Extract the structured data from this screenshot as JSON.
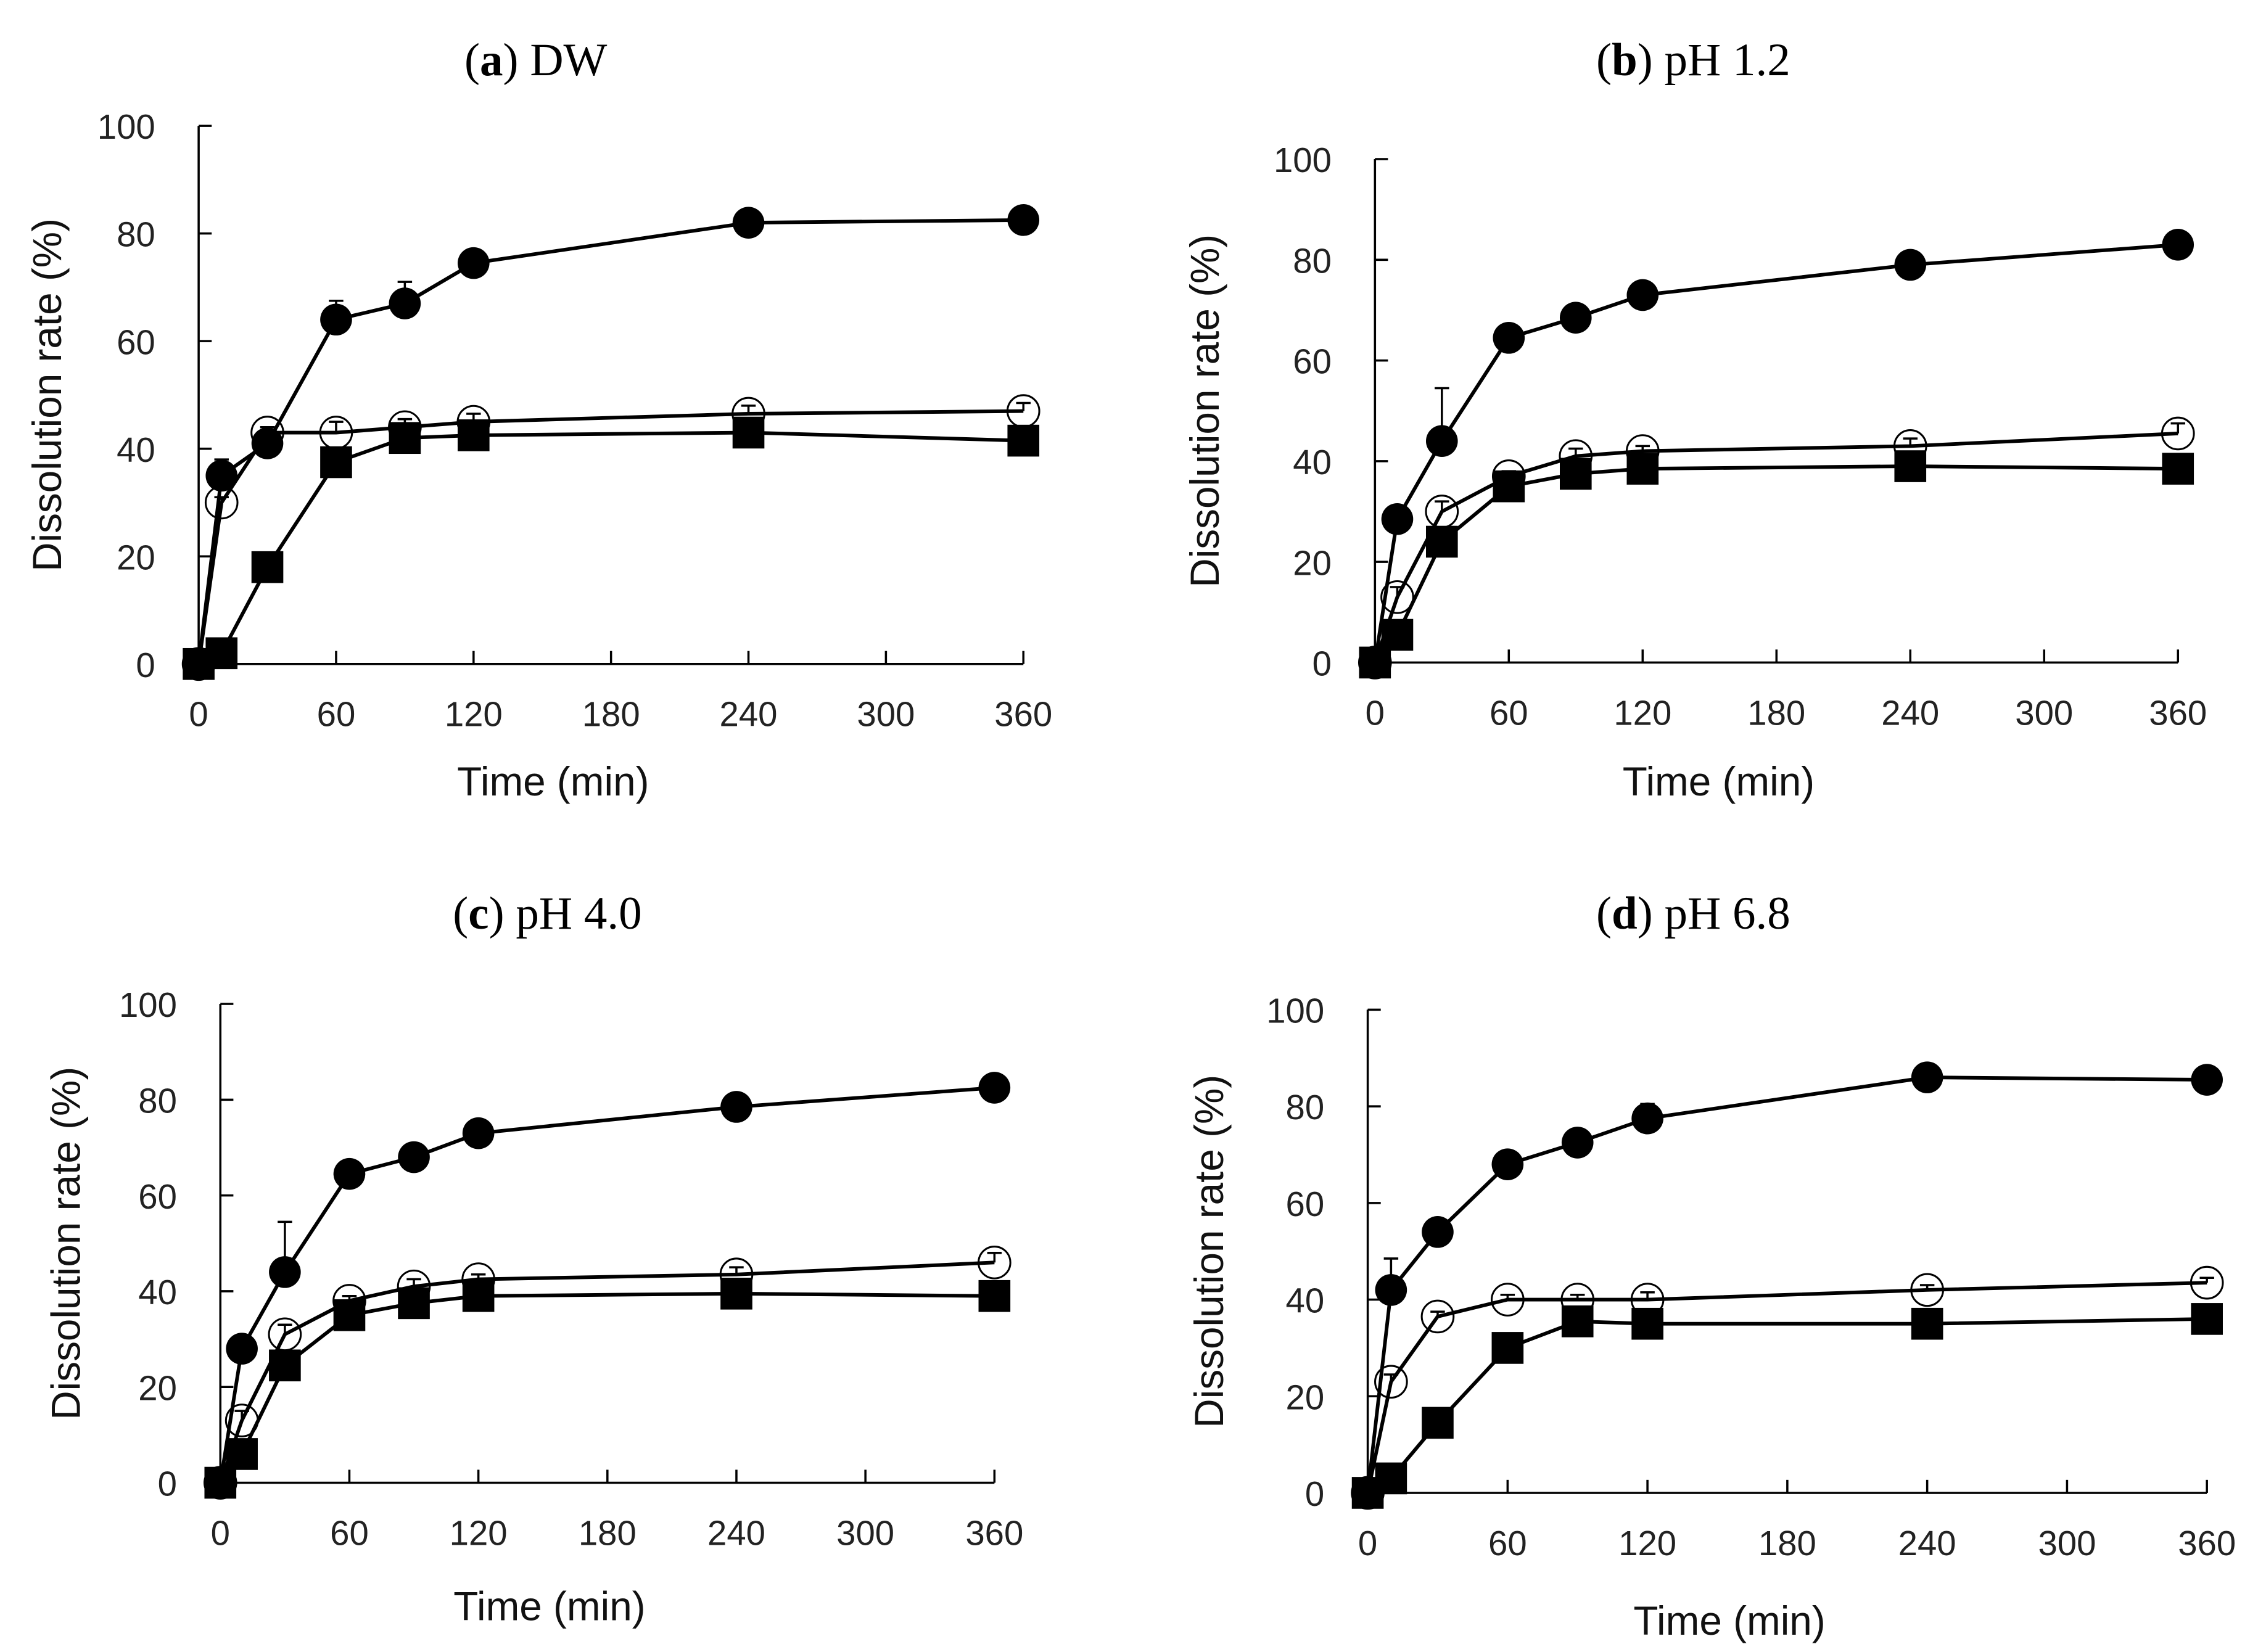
{
  "chart_data": [
    {
      "type": "line",
      "panel": "a",
      "title_letter": "a",
      "title": "DW",
      "xlabel": "Time (min)",
      "ylabel": "Dissolution rate (%)",
      "xlim": [
        0,
        360
      ],
      "ylim": [
        0,
        100
      ],
      "xticks": [
        0,
        60,
        120,
        180,
        240,
        300,
        360
      ],
      "yticks": [
        0,
        20,
        40,
        60,
        80,
        100
      ],
      "x": [
        0,
        10,
        30,
        60,
        90,
        120,
        240,
        360
      ],
      "series": [
        {
          "name": "filled-circle",
          "marker": "filled-circle",
          "values": [
            0,
            35,
            41,
            64,
            67,
            74.5,
            82,
            82.5
          ],
          "err": [
            0,
            3,
            1,
            3.5,
            4,
            1,
            1,
            1
          ]
        },
        {
          "name": "open-circle",
          "marker": "open-circle",
          "values": [
            0,
            30,
            43,
            43,
            44,
            45,
            46.5,
            47
          ],
          "err": [
            0,
            1,
            1,
            2,
            1.5,
            1.5,
            1.5,
            1.5
          ]
        },
        {
          "name": "filled-square",
          "marker": "filled-square",
          "values": [
            0,
            2,
            18,
            37.5,
            42,
            42.5,
            43,
            41.5
          ],
          "err": [
            0,
            0.5,
            1,
            1,
            1,
            1,
            2,
            1
          ]
        }
      ]
    },
    {
      "type": "line",
      "panel": "b",
      "title_letter": "b",
      "title": "pH 1.2",
      "xlabel": "Time (min)",
      "ylabel": "Dissolution rate (%)",
      "xlim": [
        0,
        360
      ],
      "ylim": [
        0,
        100
      ],
      "xticks": [
        0,
        60,
        120,
        180,
        240,
        300,
        360
      ],
      "yticks": [
        0,
        20,
        40,
        60,
        80,
        100
      ],
      "x": [
        0,
        10,
        30,
        60,
        90,
        120,
        240,
        360
      ],
      "series": [
        {
          "name": "filled-circle",
          "marker": "filled-circle",
          "values": [
            0,
            28.5,
            44,
            64.5,
            68.5,
            73,
            79,
            83
          ],
          "err": [
            0,
            1,
            10.5,
            1,
            1,
            1,
            1,
            1
          ]
        },
        {
          "name": "open-circle",
          "marker": "open-circle",
          "values": [
            0,
            13,
            30,
            37,
            41,
            42,
            43,
            45.5
          ],
          "err": [
            0,
            2,
            2,
            1,
            1.5,
            1,
            1.5,
            2
          ]
        },
        {
          "name": "filled-square",
          "marker": "filled-square",
          "values": [
            0,
            5.5,
            24,
            35,
            37.5,
            38.5,
            39,
            38.5
          ],
          "err": [
            0,
            1,
            1,
            1,
            1,
            1,
            1,
            1
          ]
        }
      ]
    },
    {
      "type": "line",
      "panel": "c",
      "title_letter": "c",
      "title": "pH 4.0",
      "xlabel": "Time (min)",
      "ylabel": "Dissolution rate (%)",
      "xlim": [
        0,
        360
      ],
      "ylim": [
        0,
        100
      ],
      "xticks": [
        0,
        60,
        120,
        180,
        240,
        300,
        360
      ],
      "yticks": [
        0,
        20,
        40,
        60,
        80,
        100
      ],
      "x": [
        0,
        10,
        30,
        60,
        90,
        120,
        240,
        360
      ],
      "series": [
        {
          "name": "filled-circle",
          "marker": "filled-circle",
          "values": [
            0,
            28,
            44,
            64.5,
            68,
            73,
            78.5,
            82.5
          ],
          "err": [
            0,
            1,
            10.5,
            1,
            1,
            1,
            1,
            1
          ]
        },
        {
          "name": "open-circle",
          "marker": "open-circle",
          "values": [
            0,
            13,
            31,
            38,
            41,
            42.5,
            43.5,
            46
          ],
          "err": [
            0,
            2,
            2,
            1,
            1.5,
            1,
            1.5,
            2
          ]
        },
        {
          "name": "filled-square",
          "marker": "filled-square",
          "values": [
            0,
            6,
            24.5,
            35,
            37.5,
            39,
            39.5,
            39
          ],
          "err": [
            0,
            1,
            1,
            1,
            1,
            1,
            1,
            1
          ]
        }
      ]
    },
    {
      "type": "line",
      "panel": "d",
      "title_letter": "d",
      "title": "pH 6.8",
      "xlabel": "Time (min)",
      "ylabel": "Dissolution rate (%)",
      "xlim": [
        0,
        360
      ],
      "ylim": [
        0,
        100
      ],
      "xticks": [
        0,
        60,
        120,
        180,
        240,
        300,
        360
      ],
      "yticks": [
        0,
        20,
        40,
        60,
        80,
        100
      ],
      "x": [
        0,
        10,
        30,
        60,
        90,
        120,
        240,
        360
      ],
      "series": [
        {
          "name": "filled-circle",
          "marker": "filled-circle",
          "values": [
            0,
            42,
            54,
            68,
            72.5,
            77.5,
            86,
            85.5
          ],
          "err": [
            0,
            6.5,
            1,
            1,
            1,
            3,
            1,
            1
          ]
        },
        {
          "name": "open-circle",
          "marker": "open-circle",
          "values": [
            0,
            23,
            36.5,
            40,
            40,
            40,
            42,
            43.5
          ],
          "err": [
            0,
            1.5,
            1,
            1,
            1,
            1.5,
            1,
            1
          ]
        },
        {
          "name": "filled-square",
          "marker": "filled-square",
          "values": [
            0,
            3,
            14.5,
            30,
            35.5,
            35,
            35,
            36
          ],
          "err": [
            0,
            0.5,
            1,
            1,
            1,
            1,
            1,
            1
          ]
        }
      ]
    }
  ]
}
